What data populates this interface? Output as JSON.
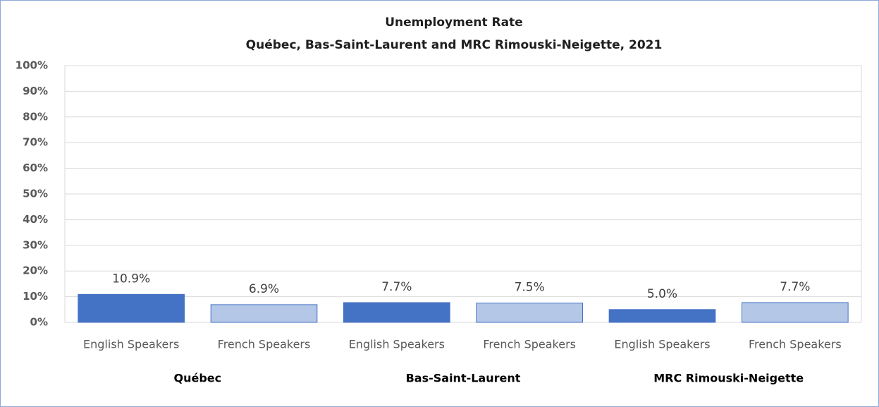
{
  "chart_data": {
    "type": "bar",
    "title": "Unemployment Rate",
    "subtitle": "Québec, Bas-Saint-Laurent and MRC Rimouski-Neigette, 2021",
    "categories": [
      "Québec",
      "Bas-Saint-Laurent",
      "MRC Rimouski-Neigette"
    ],
    "series": [
      {
        "name": "English Speakers",
        "color": "#4472c4",
        "edgecolor": "#4472c4",
        "values": [
          10.9,
          7.7,
          5.0
        ],
        "value_labels": [
          "10.9%",
          "7.7%",
          "5.0%"
        ]
      },
      {
        "name": "French Speakers",
        "color": "#b4c7e7",
        "edgecolor": "#4472c4",
        "values": [
          6.9,
          7.5,
          7.7
        ],
        "value_labels": [
          "6.9%",
          "7.5%",
          "7.7%"
        ]
      }
    ],
    "ylim": [
      0,
      100
    ],
    "yticks": [
      {
        "value": 0,
        "label": "0%"
      },
      {
        "value": 10,
        "label": "10%"
      },
      {
        "value": 20,
        "label": "20%"
      },
      {
        "value": 30,
        "label": "30%"
      },
      {
        "value": 40,
        "label": "40%"
      },
      {
        "value": 50,
        "label": "50%"
      },
      {
        "value": 60,
        "label": "60%"
      },
      {
        "value": 70,
        "label": "70%"
      },
      {
        "value": 80,
        "label": "80%"
      },
      {
        "value": 90,
        "label": "90%"
      },
      {
        "value": 100,
        "label": "100%"
      }
    ],
    "grid": true
  }
}
